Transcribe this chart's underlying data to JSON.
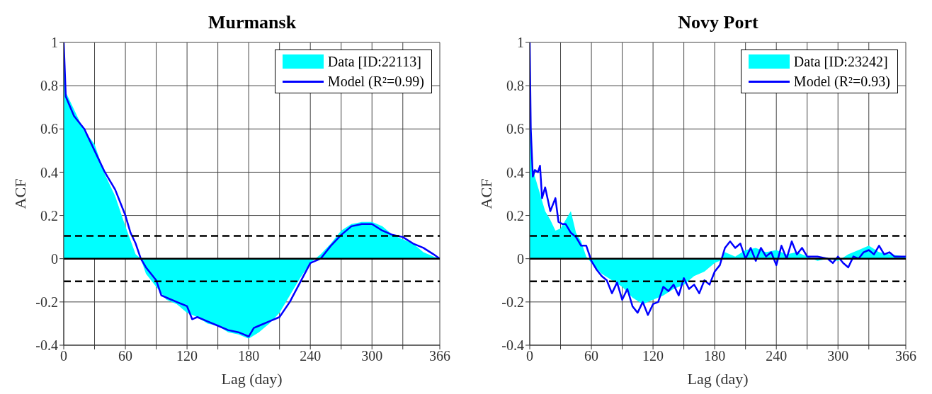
{
  "chart_data": [
    {
      "type": "area",
      "title": "Murmansk",
      "xlabel": "Lag (day)",
      "ylabel": "ACF",
      "xlim": [
        0,
        366
      ],
      "ylim": [
        -0.4,
        1
      ],
      "xticks": [
        0,
        {
          "value": 30,
          "label": null
        },
        60,
        {
          "value": 90,
          "label": null
        },
        120,
        {
          "value": 150,
          "label": null
        },
        180,
        {
          "value": 210,
          "label": null
        },
        240,
        {
          "value": 270,
          "label": null
        },
        300,
        {
          "value": 330,
          "label": null
        },
        366
      ],
      "yticks": [
        -0.4,
        -0.2,
        0,
        0.2,
        0.4,
        0.6,
        0.8,
        1
      ],
      "grid": true,
      "legend": "top right",
      "ref_lines": [
        {
          "axis": "y",
          "value": 0,
          "color": "#000000",
          "line_style": "solid"
        },
        {
          "axis": "y",
          "value": 0.105,
          "color": "#000000",
          "line_style": "dashed"
        },
        {
          "axis": "y",
          "value": -0.105,
          "color": "#000000",
          "line_style": "dashed"
        }
      ],
      "series": [
        {
          "name": "Data [ID:22113]",
          "color": "#00ffff",
          "x": [
            0,
            2,
            10,
            20,
            30,
            40,
            50,
            60,
            70,
            75,
            80,
            90,
            100,
            110,
            120,
            130,
            140,
            150,
            160,
            170,
            180,
            190,
            200,
            210,
            220,
            230,
            240,
            250,
            260,
            270,
            280,
            290,
            300,
            310,
            320,
            330,
            340,
            350,
            360,
            366
          ],
          "values": [
            1,
            0.77,
            0.69,
            0.59,
            0.53,
            0.39,
            0.29,
            0.15,
            0.02,
            0,
            -0.07,
            -0.13,
            -0.19,
            -0.21,
            -0.25,
            -0.27,
            -0.3,
            -0.31,
            -0.34,
            -0.35,
            -0.37,
            -0.34,
            -0.3,
            -0.25,
            -0.17,
            -0.09,
            -0.02,
            0.02,
            0.07,
            0.13,
            0.16,
            0.17,
            0.17,
            0.15,
            0.11,
            0.09,
            0.07,
            0.03,
            0.01,
            0
          ]
        },
        {
          "name": "Model (R²=0.99)",
          "type": "line",
          "color": "#0000ff",
          "x": [
            0,
            2,
            10,
            20,
            30,
            40,
            50,
            60,
            65,
            70,
            75,
            80,
            90,
            95,
            100,
            110,
            120,
            125,
            130,
            140,
            150,
            160,
            170,
            175,
            180,
            185,
            190,
            200,
            210,
            220,
            230,
            240,
            250,
            260,
            270,
            280,
            290,
            300,
            310,
            320,
            330,
            340,
            350,
            360,
            366
          ],
          "values": [
            1,
            0.75,
            0.66,
            0.6,
            0.5,
            0.4,
            0.32,
            0.2,
            0.12,
            0.07,
            0,
            -0.04,
            -0.1,
            -0.17,
            -0.18,
            -0.2,
            -0.22,
            -0.28,
            -0.27,
            -0.29,
            -0.31,
            -0.33,
            -0.34,
            -0.35,
            -0.36,
            -0.32,
            -0.31,
            -0.29,
            -0.27,
            -0.2,
            -0.11,
            -0.02,
            0,
            0.06,
            0.11,
            0.15,
            0.16,
            0.16,
            0.13,
            0.11,
            0.1,
            0.07,
            0.05,
            0.02,
            0
          ]
        }
      ]
    },
    {
      "type": "area",
      "title": "Novy Port",
      "xlabel": "Lag (day)",
      "ylabel": "ACF",
      "xlim": [
        0,
        366
      ],
      "ylim": [
        -0.4,
        1
      ],
      "xticks": [
        0,
        {
          "value": 30,
          "label": null
        },
        60,
        {
          "value": 90,
          "label": null
        },
        120,
        {
          "value": 150,
          "label": null
        },
        180,
        {
          "value": 210,
          "label": null
        },
        240,
        {
          "value": 270,
          "label": null
        },
        300,
        {
          "value": 330,
          "label": null
        },
        366
      ],
      "yticks": [
        -0.4,
        -0.2,
        0,
        0.2,
        0.4,
        0.6,
        0.8,
        1
      ],
      "grid": true,
      "legend": "top right",
      "ref_lines": [
        {
          "axis": "y",
          "value": 0,
          "color": "#000000",
          "line_style": "solid"
        },
        {
          "axis": "y",
          "value": 0.105,
          "color": "#000000",
          "line_style": "dashed"
        },
        {
          "axis": "y",
          "value": -0.105,
          "color": "#000000",
          "line_style": "dashed"
        }
      ],
      "series": [
        {
          "name": "Data [ID:23242]",
          "color": "#00ffff",
          "x": [
            0,
            2,
            5,
            10,
            15,
            20,
            25,
            30,
            40,
            45,
            50,
            55,
            60,
            70,
            80,
            90,
            100,
            110,
            120,
            130,
            140,
            150,
            160,
            170,
            180,
            185,
            190,
            200,
            210,
            220,
            230,
            240,
            250,
            260,
            270,
            280,
            290,
            300,
            310,
            320,
            330,
            340,
            350,
            366
          ],
          "values": [
            1,
            0.45,
            0.38,
            0.3,
            0.22,
            0.18,
            0.13,
            0.14,
            0.22,
            0.12,
            0.08,
            0.01,
            -0.02,
            -0.07,
            -0.1,
            -0.13,
            -0.18,
            -0.21,
            -0.19,
            -0.17,
            -0.14,
            -0.12,
            -0.08,
            -0.06,
            -0.02,
            -0.01,
            0.03,
            0.01,
            0.04,
            0.05,
            0.03,
            0.04,
            0.02,
            0.03,
            0.01,
            -0.01,
            0,
            -0.01,
            0.02,
            0.04,
            0.06,
            0.03,
            0.02,
            0.01
          ]
        },
        {
          "name": "Model (R²=0.93)",
          "type": "line",
          "color": "#0000ff",
          "x": [
            0,
            1,
            3,
            5,
            8,
            10,
            12,
            15,
            20,
            25,
            28,
            32,
            35,
            40,
            45,
            50,
            55,
            60,
            65,
            70,
            75,
            80,
            85,
            90,
            95,
            100,
            105,
            110,
            115,
            120,
            125,
            130,
            135,
            140,
            145,
            150,
            155,
            160,
            165,
            170,
            175,
            180,
            185,
            190,
            195,
            200,
            205,
            210,
            215,
            220,
            225,
            230,
            235,
            240,
            245,
            250,
            255,
            260,
            265,
            270,
            280,
            290,
            295,
            300,
            305,
            310,
            315,
            320,
            325,
            330,
            335,
            340,
            345,
            350,
            355,
            366
          ],
          "values": [
            1,
            0.6,
            0.38,
            0.41,
            0.4,
            0.43,
            0.28,
            0.33,
            0.22,
            0.28,
            0.17,
            0.16,
            0.16,
            0.12,
            0.1,
            0.06,
            0.06,
            -0.01,
            -0.05,
            -0.08,
            -0.1,
            -0.16,
            -0.11,
            -0.19,
            -0.14,
            -0.22,
            -0.25,
            -0.2,
            -0.26,
            -0.21,
            -0.2,
            -0.13,
            -0.15,
            -0.12,
            -0.17,
            -0.09,
            -0.14,
            -0.12,
            -0.16,
            -0.1,
            -0.12,
            -0.06,
            -0.03,
            0.05,
            0.08,
            0.05,
            0.07,
            0,
            0.05,
            -0.01,
            0.05,
            0.01,
            0.03,
            -0.03,
            0.06,
            0,
            0.08,
            0.02,
            0.05,
            0.01,
            0.01,
            0,
            -0.02,
            0.01,
            -0.02,
            -0.04,
            0.01,
            0,
            0.03,
            0.04,
            0.02,
            0.06,
            0.02,
            0.03,
            0.01,
            0.01
          ]
        }
      ]
    }
  ]
}
